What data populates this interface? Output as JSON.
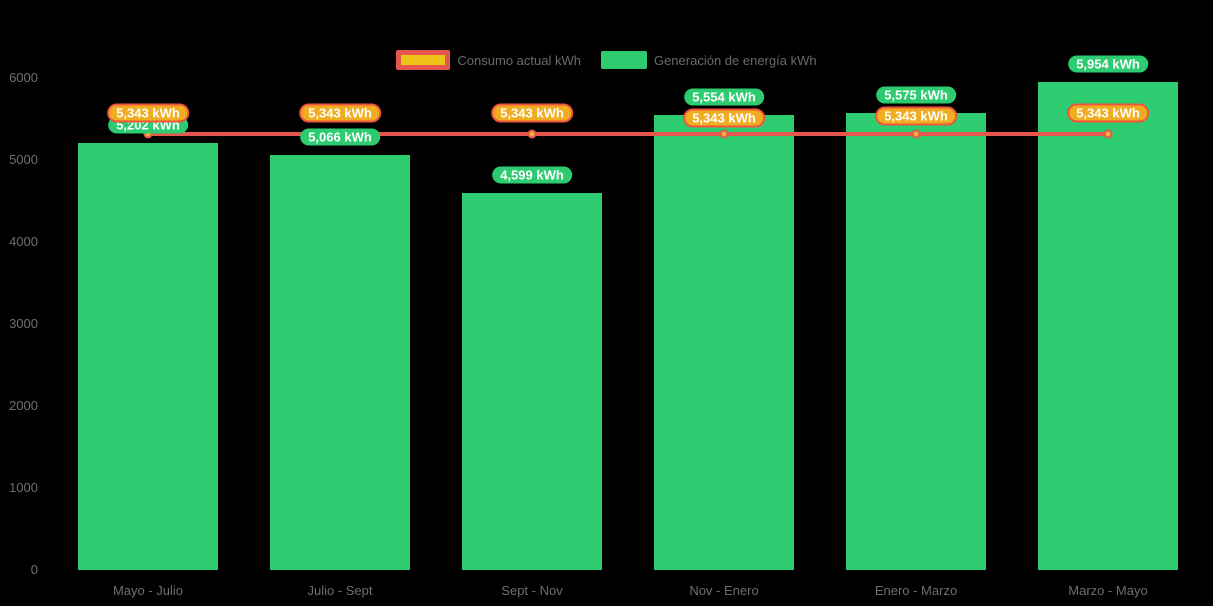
{
  "legend": {
    "consumption_label": "Consumo actual kWh",
    "generation_label": "Generación de energía kWh"
  },
  "chart_data": {
    "type": "bar",
    "subtype": "combo-bar-line",
    "categories": [
      "Mayo - Julio",
      "Julio - Sept",
      "Sept - Nov",
      "Nov - Enero",
      "Enero - Marzo",
      "Marzo - Mayo"
    ],
    "series": [
      {
        "name": "Consumo actual kWh",
        "type": "line",
        "values": [
          5343,
          5343,
          5343,
          5343,
          5343,
          5343
        ]
      },
      {
        "name": "Generación de energía kWh",
        "type": "bar",
        "values": [
          5202,
          5066,
          4599,
          5554,
          5575,
          5954
        ]
      }
    ],
    "data_labels": {
      "consumption": [
        "5,343 kWh",
        "5,343 kWh",
        "5,343 kWh",
        "5,343 kWh",
        "5,343 kWh",
        "5,343 kWh"
      ],
      "generation": [
        "5,202 kWh",
        "5,066 kWh",
        "4,599 kWh",
        "5,554 kWh",
        "5,575 kWh",
        "5,954 kWh"
      ]
    },
    "yticks": [
      0,
      1000,
      2000,
      3000,
      4000,
      5000,
      6000
    ],
    "ylim": [
      0,
      6000
    ],
    "xlabel": "",
    "ylabel": "",
    "title": "",
    "grid": false,
    "legend_position": "top",
    "colors": {
      "bar": "#2ecc71",
      "line": "#e5564e",
      "marker_fill": "#f1b32e",
      "marker_stroke": "#e5564e",
      "badge_generation_fill": "#2ecc71",
      "badge_consumption_fill": "#f0ad21",
      "badge_consumption_border": "#f2543d",
      "legend_consumption_fill": "#efc319",
      "legend_consumption_border": "#e5564e",
      "axis_text": "#6e6e6e",
      "background": "#000000"
    }
  }
}
